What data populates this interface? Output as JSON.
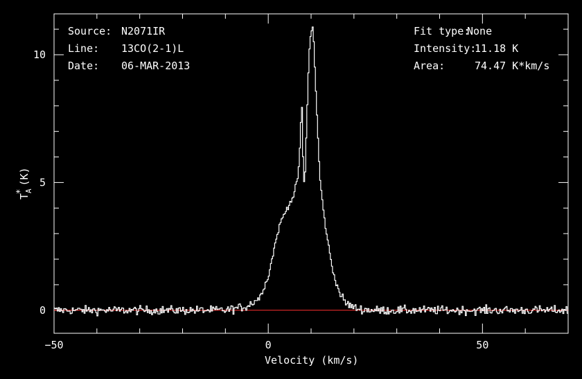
{
  "chart_data": {
    "type": "line",
    "style": "step",
    "xlabel": "Velocity (km/s)",
    "ylabel": "T",
    "ylabel_sub": "A",
    "ylabel_sup": "*",
    "ylabel_unit": "(K)",
    "xlim": [
      -50,
      70
    ],
    "ylim": [
      -0.9,
      11.6
    ],
    "x_ticks": [
      -50,
      0,
      50
    ],
    "y_ticks": [
      0,
      5,
      10
    ],
    "grid": false,
    "colors": {
      "background": "#000000",
      "axes": "#ffffff",
      "spectrum": "#ffffff",
      "baseline": "#ff3030"
    },
    "baseline": 0,
    "header_left": [
      {
        "key": "Source:",
        "value": "N2071IR"
      },
      {
        "key": "Line:",
        "value": "13CO(2-1)L"
      },
      {
        "key": "Date:",
        "value": "06-MAR-2013"
      }
    ],
    "header_right": [
      {
        "key": "Fit type:",
        "value": "None"
      },
      {
        "key": "Intensity:",
        "value": "11.18 K"
      },
      {
        "key": "Area:",
        "value": "74.47 K*km/s"
      }
    ],
    "profile": {
      "x": [
        -50,
        -10,
        -5,
        -2,
        0,
        1,
        2,
        3,
        4,
        5,
        6,
        7,
        7.5,
        7.8,
        8.2,
        8.5,
        9.0,
        9.5,
        10.0,
        10.5,
        11.0,
        11.5,
        12,
        13,
        14,
        15,
        16,
        17,
        18,
        20,
        22,
        25,
        70
      ],
      "y": [
        0,
        0,
        0.15,
        0.5,
        1.3,
        2.1,
        2.9,
        3.5,
        3.85,
        4.2,
        4.5,
        5.3,
        6.6,
        8.4,
        5.5,
        4.7,
        7.4,
        10.0,
        10.9,
        11.1,
        9.0,
        7.2,
        5.3,
        3.7,
        2.6,
        1.6,
        1.0,
        0.55,
        0.3,
        0.1,
        0.03,
        0,
        0
      ]
    },
    "noise_rms": 0.12
  }
}
